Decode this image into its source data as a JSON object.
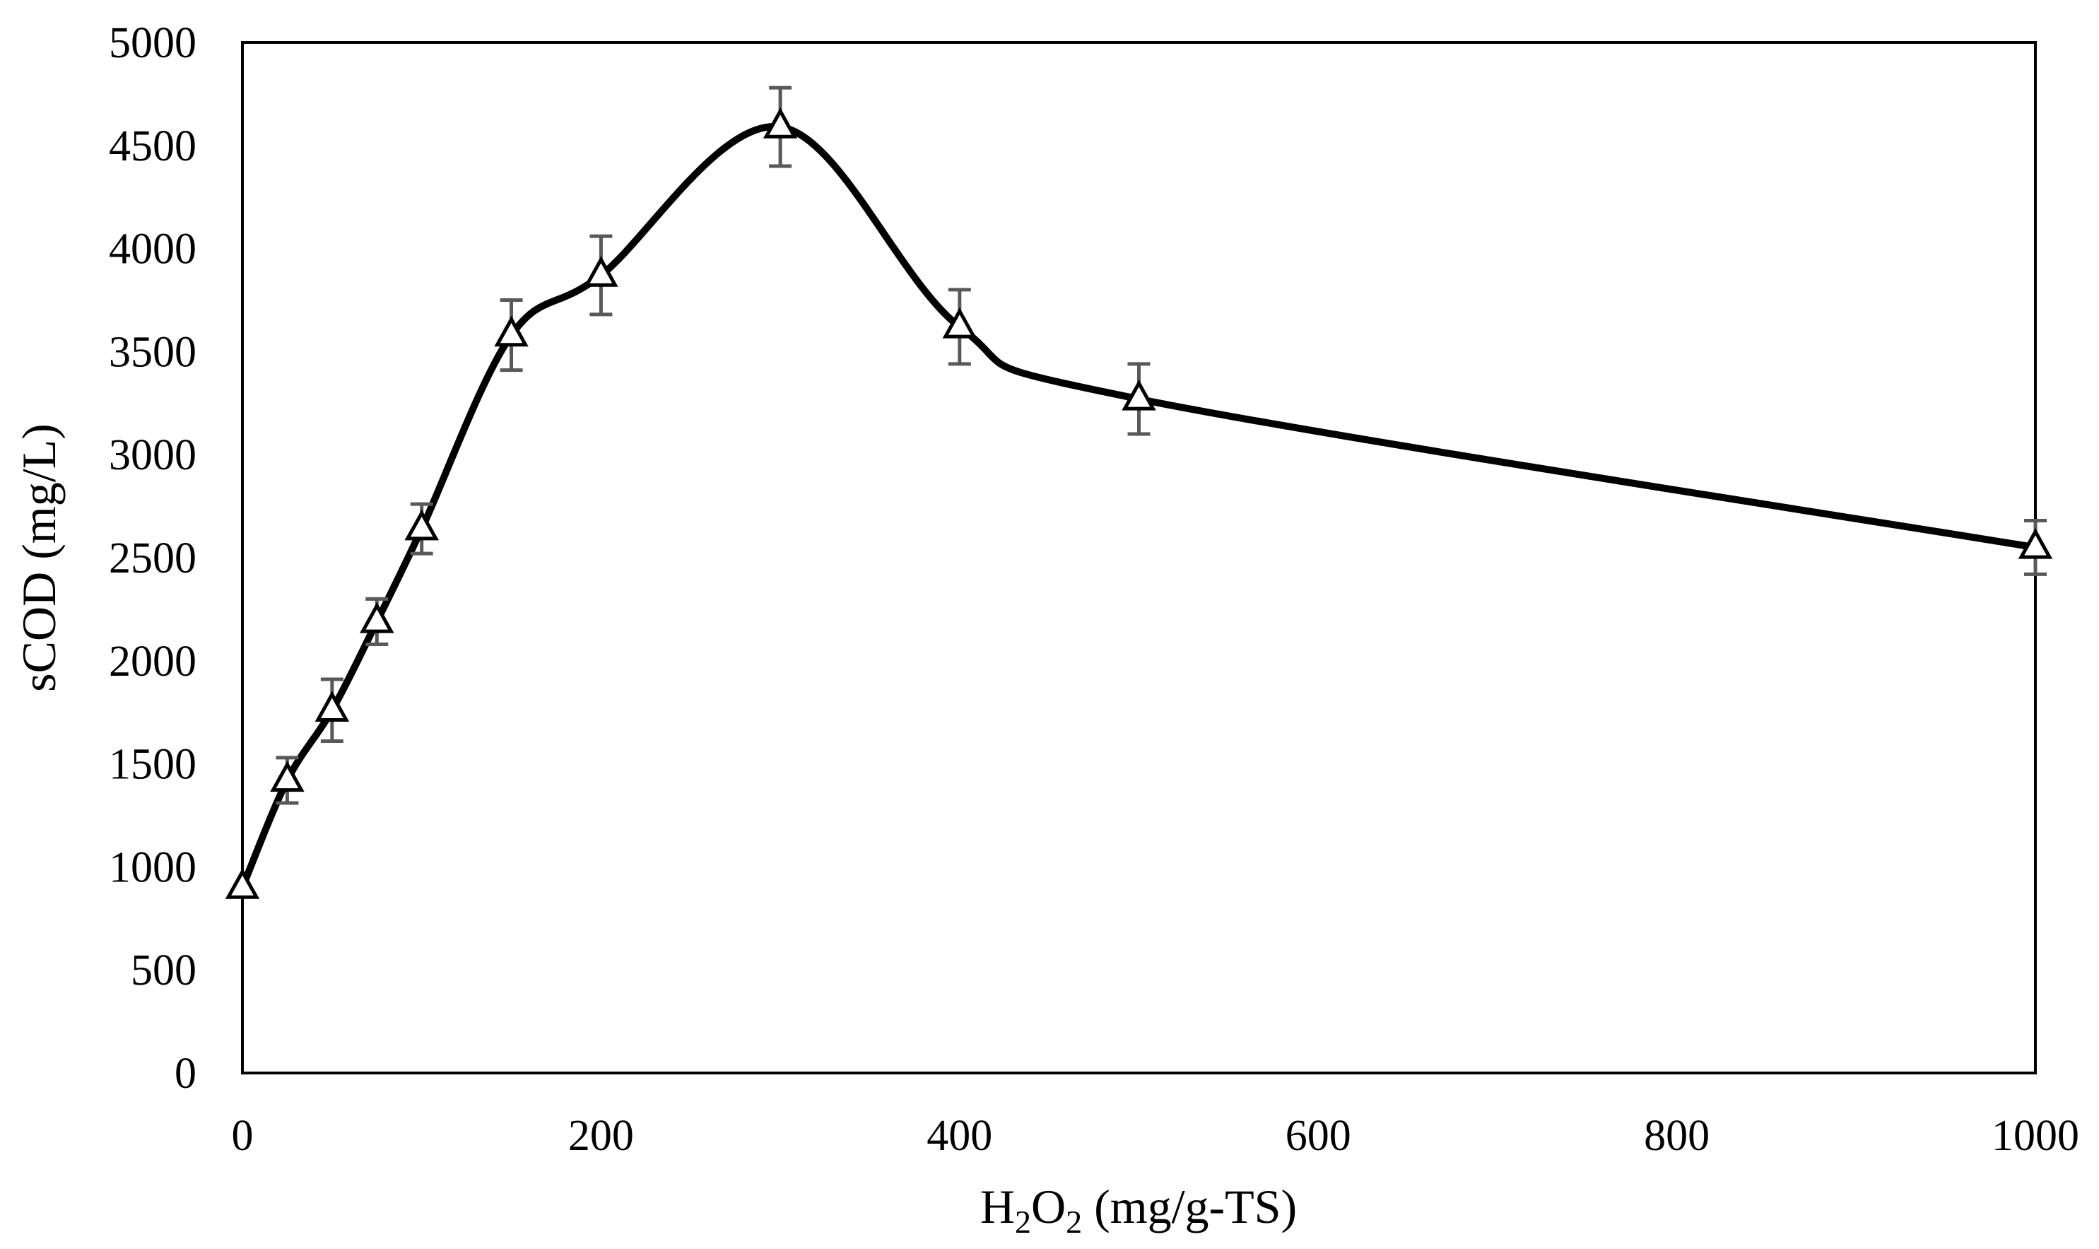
{
  "chart_data": {
    "type": "line",
    "smooth": true,
    "title": "",
    "xlabel": {
      "base1": "H",
      "sub1": "2",
      "base2": "O",
      "sub2": "2",
      "rest": " (mg/g-TS)"
    },
    "ylabel": "sCOD (mg/L)",
    "xlim": [
      0,
      1000
    ],
    "ylim": [
      0,
      5000
    ],
    "x_ticks": [
      0,
      200,
      400,
      600,
      800,
      1000
    ],
    "y_ticks": [
      0,
      500,
      1000,
      1500,
      2000,
      2500,
      3000,
      3500,
      4000,
      4500,
      5000
    ],
    "grid": false,
    "legend": null,
    "marker": "open-triangle",
    "colors": {
      "line": "#000000",
      "error_bar": "#595959",
      "frame": "#000000"
    },
    "series": [
      {
        "name": "sCOD",
        "x": [
          0,
          25,
          50,
          75,
          100,
          150,
          200,
          300,
          400,
          500,
          1000
        ],
        "values": [
          900,
          1420,
          1760,
          2190,
          2640,
          3580,
          3870,
          4590,
          3620,
          3270,
          2550
        ],
        "error": [
          0,
          110,
          150,
          110,
          120,
          170,
          190,
          190,
          180,
          170,
          130
        ]
      }
    ]
  }
}
